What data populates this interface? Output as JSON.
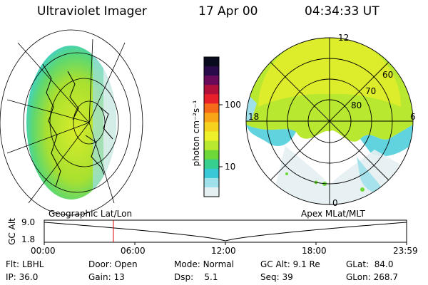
{
  "header": {
    "instrument": "Ultraviolet Imager",
    "date": "17 Apr 00",
    "time": "04:34:33 UT"
  },
  "colorbar": {
    "label": "photon cm⁻²s⁻¹",
    "ticks": [
      "100",
      "10"
    ],
    "colors": [
      "#0b0b1f",
      "#2a0a4a",
      "#6a0a5a",
      "#b0103a",
      "#e8202a",
      "#f56a18",
      "#f8a516",
      "#f6d21e",
      "#eef02a",
      "#b8e830",
      "#6ed838",
      "#36cf90",
      "#38c8d6",
      "#9fe0ea",
      "#e4f0f2"
    ]
  },
  "left_map": {
    "label": "Geographic Lat/Lon"
  },
  "right_map": {
    "label": "Apex  MLat/MLT",
    "mlt_labels": {
      "top": "12",
      "left": "18",
      "right": "6",
      "bottom": "0"
    },
    "lat_labels": [
      "60",
      "70",
      "80"
    ]
  },
  "altitude_plot": {
    "ylabel": "GC Alt",
    "yticks": [
      "9.0",
      "1.8"
    ],
    "xticks": [
      "00:00",
      "06:00",
      "12:00",
      "18:00",
      "23:59"
    ],
    "current_time_hours": 4.58
  },
  "info": [
    [
      {
        "k": "Flt:",
        "v": "LBHL"
      },
      {
        "k": "Door:",
        "v": "Open"
      },
      {
        "k": "Mode:",
        "v": "Normal"
      },
      {
        "k": "GC Alt:",
        "v": "9.1 Re"
      },
      {
        "k": "GLat:",
        "v": "84.0"
      }
    ],
    [
      {
        "k": "IP:",
        "v": "36.0"
      },
      {
        "k": "Gain:",
        "v": "13"
      },
      {
        "k": "Dsp:",
        "v": "5.1"
      },
      {
        "k": "Seq:",
        "v": "39"
      },
      {
        "k": "GLon:",
        "v": "268.7"
      }
    ]
  ]
}
